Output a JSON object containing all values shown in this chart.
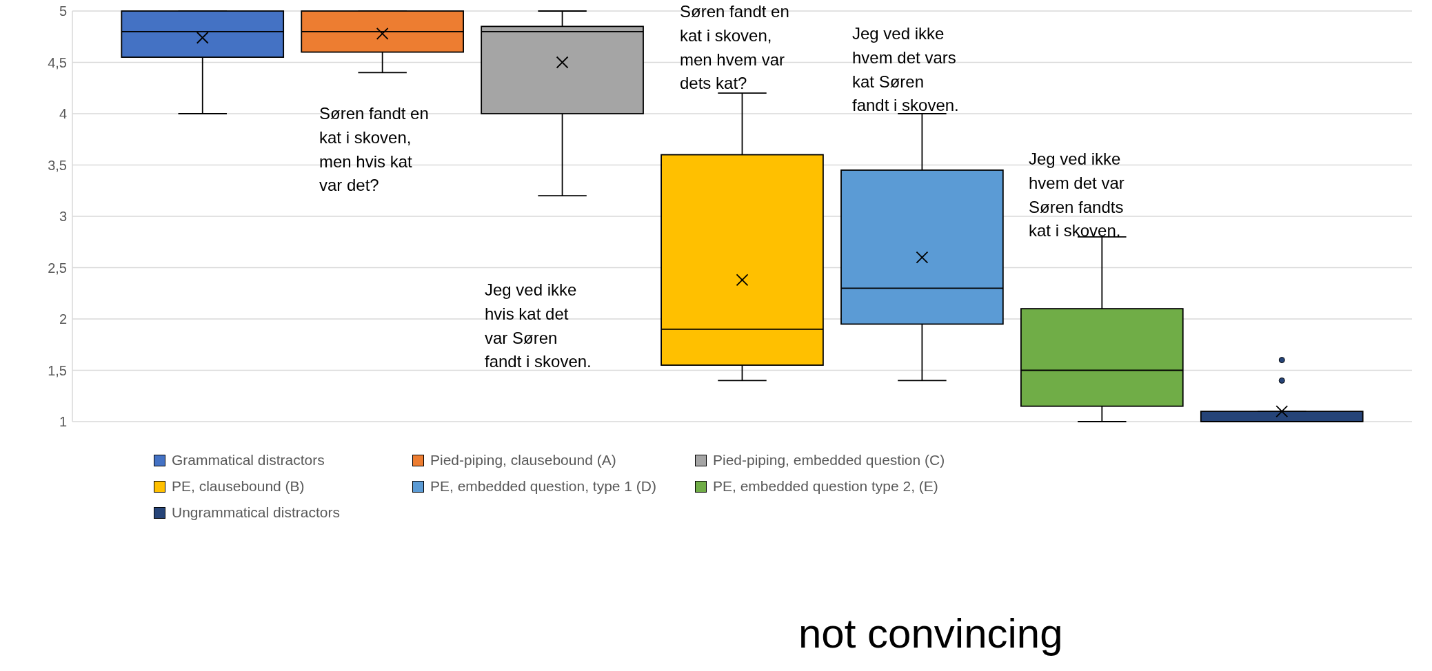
{
  "chart_data": {
    "type": "box",
    "categories": [
      null
    ],
    "series": [
      {
        "name": "Grammatical distractors",
        "color": "#4472c4",
        "boxes": [
          {
            "low": 4.0,
            "q1": 4.55,
            "median": 4.8,
            "q3": 5.0,
            "high": 5.0,
            "mean": 4.74
          }
        ]
      },
      {
        "name": "Pied-piping, clausebound (A)",
        "color": "#ed7d31",
        "boxes": [
          {
            "low": 4.4,
            "q1": 4.6,
            "median": 4.8,
            "q3": 5.0,
            "high": 5.0,
            "mean": 4.78
          }
        ]
      },
      {
        "name": "Pied-piping, embedded question (C)",
        "color": "#a5a5a5",
        "boxes": [
          {
            "low": 3.2,
            "q1": 4.0,
            "median": 4.8,
            "q3": 4.85,
            "high": 5.0,
            "mean": 4.5
          }
        ]
      },
      {
        "name": "PE, clausebound (B)",
        "color": "#ffc000",
        "boxes": [
          {
            "low": 1.4,
            "q1": 1.55,
            "median": 1.9,
            "q3": 3.6,
            "high": 4.2,
            "mean": 2.38
          }
        ]
      },
      {
        "name": "PE, embedded question, type 1 (D)",
        "color": "#5b9bd5",
        "boxes": [
          {
            "low": 1.4,
            "q1": 1.95,
            "median": 2.3,
            "q3": 3.45,
            "high": 4.0,
            "mean": 2.6
          }
        ]
      },
      {
        "name": "PE, embedded question type 2, (E)",
        "color": "#70ad47",
        "boxes": [
          {
            "low": 1.0,
            "q1": 1.15,
            "median": 1.5,
            "q3": 2.1,
            "high": 2.8
          }
        ]
      },
      {
        "name": "Ungrammatical distractors",
        "color": "#264478",
        "boxes": [
          {
            "low": 1.0,
            "q1": 1.0,
            "median": 1.0,
            "q3": 1.1,
            "high": 1.1,
            "mean": 1.1,
            "outliers": [
              1.4,
              1.6
            ]
          }
        ]
      }
    ],
    "ylim": [
      1,
      5
    ],
    "yticks": [
      1,
      {
        "value": 1.5,
        "label": "1,5"
      },
      2,
      {
        "value": 2.5,
        "label": "2,5"
      },
      3,
      {
        "value": 3.5,
        "label": "3,5"
      },
      4,
      {
        "value": 4.5,
        "label": "4,5"
      },
      5
    ],
    "grid": "y",
    "legend": "bottom",
    "annotations": [
      "Søren fandt en\nkat i skoven,\nmen hvis kat\nvar det?",
      "Jeg ved ikke\nhvis kat det\nvar Søren\nfandt i skoven.",
      "Søren fandt en\nkat i skoven,\nmen hvem var\ndets kat?",
      "Jeg ved ikke\nhvem det vars\nkat Søren\nfandt i skoven.",
      "Jeg ved ikke\nhvem det var\nSøren fandts\nkat i skoven.",
      "not convincing"
    ]
  }
}
